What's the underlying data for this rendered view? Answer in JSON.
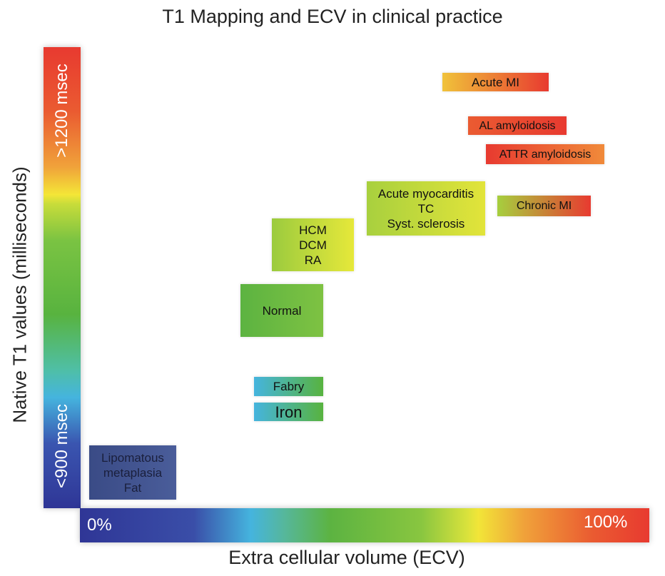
{
  "chart_data": {
    "type": "region-diagram",
    "title": "T1 Mapping and ECV in clinical practice",
    "xlabel": "Extra cellular volume (ECV)",
    "ylabel": "Native T1 values (milliseconds)",
    "x_axis": {
      "min_label": "0%",
      "max_label": "100%"
    },
    "y_axis": {
      "min_label": "<900 msec",
      "max_label": ">1200 msec"
    },
    "legend": "none",
    "grid": false,
    "categories": [
      {
        "id": "acute-mi",
        "label": "Acute MI",
        "colors": [
          "#f0c23a",
          "#e83a30"
        ]
      },
      {
        "id": "al-amyloidosis",
        "label": "AL amyloidosis",
        "colors": [
          "#ea5b31",
          "#e83a30"
        ]
      },
      {
        "id": "attr-amyloidosis",
        "label": "ATTR amyloidosis",
        "colors": [
          "#e83a30",
          "#f08a3a"
        ]
      },
      {
        "id": "acute-myocarditis",
        "label": "Acute myocarditis\nTC\nSyst. sclerosis",
        "colors": [
          "#a8d03e",
          "#e2e43a"
        ]
      },
      {
        "id": "chronic-mi",
        "label": "Chronic MI",
        "colors": [
          "#a6cf3e",
          "#e83a30"
        ]
      },
      {
        "id": "hcm-dcm-ra",
        "label": "HCM\nDCM\nRA",
        "colors": [
          "#9bcb3e",
          "#e6e83a"
        ]
      },
      {
        "id": "normal",
        "label": "Normal",
        "colors": [
          "#5cb341",
          "#7ec242"
        ]
      },
      {
        "id": "fabry",
        "label": "Fabry",
        "colors": [
          "#45b4de",
          "#58b33f"
        ]
      },
      {
        "id": "iron",
        "label": "Iron",
        "colors": [
          "#45b4de",
          "#58b33f"
        ]
      },
      {
        "id": "lipomatous",
        "label": "Lipomatous\nmetaplasia\nFat",
        "colors": [
          "#3a4b86",
          "#4a5d9a"
        ]
      }
    ]
  }
}
